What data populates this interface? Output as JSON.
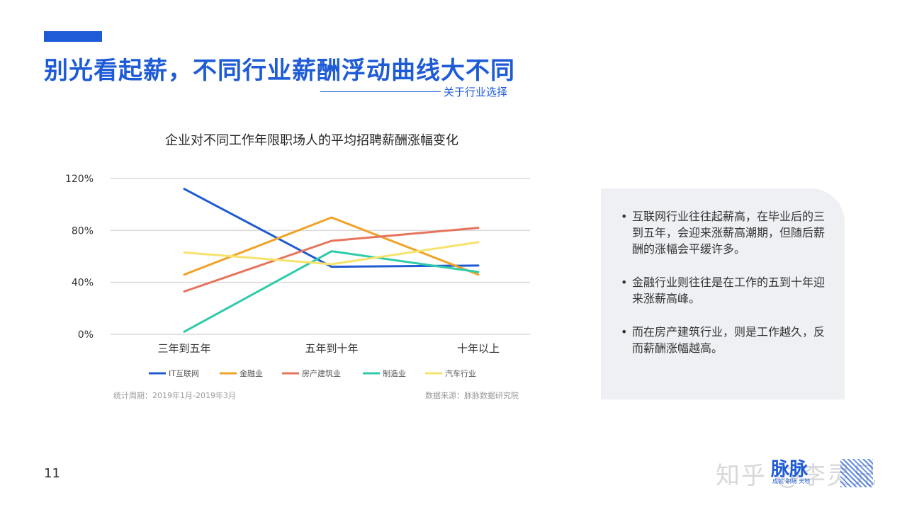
{
  "slide": {
    "title": "别光看起薪，不同行业薪酬浮动曲线大不同",
    "subtitle": "关于行业选择",
    "page_number": "11",
    "accent_color": "#1e5bd6"
  },
  "chart_data": {
    "type": "line",
    "title": "企业对不同工作年限职场人的平均招聘薪酬涨幅变化",
    "categories": [
      "三年到五年",
      "五年到十年",
      "十年以上"
    ],
    "yticks": [
      "0%",
      "40%",
      "80%",
      "120%"
    ],
    "ylim": [
      0,
      120
    ],
    "grid": true,
    "legend_position": "bottom",
    "series": [
      {
        "name": "IT互联网",
        "color": "#1f5bd0",
        "values": [
          112,
          52,
          53
        ]
      },
      {
        "name": "金融业",
        "color": "#f0a229",
        "values": [
          46,
          90,
          46
        ]
      },
      {
        "name": "房产建筑业",
        "color": "#e8735c",
        "values": [
          33,
          72,
          82
        ]
      },
      {
        "name": "制造业",
        "color": "#2fcaa9",
        "values": [
          2,
          64,
          48
        ]
      },
      {
        "name": "汽车行业",
        "color": "#f7e36b",
        "values": [
          63,
          54,
          71
        ]
      }
    ]
  },
  "footnotes": {
    "period": "统计周期：2019年1月-2019年3月",
    "source": "数据来源：脉脉数据研究院"
  },
  "notes": [
    "互联网行业往往起薪高，在毕业后的三到五年，会迎来涨薪高潮期，但随后薪酬的涨幅会平缓许多。",
    "金融行业则往往是在工作的五到十年迎来涨薪高峰。",
    "而在房产建筑行业，则是工作越久，反而薪酬涨幅越高。"
  ],
  "brand": {
    "logo": "脉脉",
    "tagline": "成就 职场 天地",
    "watermark": "知乎 @李灵兄"
  }
}
